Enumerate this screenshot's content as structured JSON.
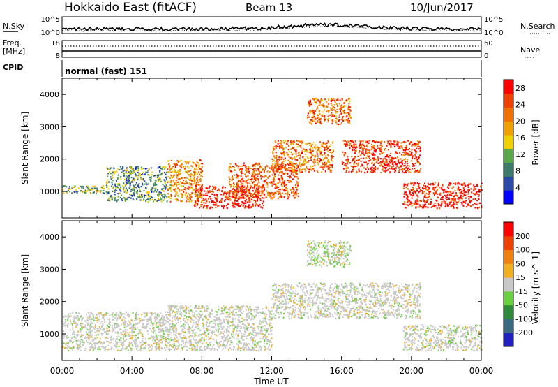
{
  "header": {
    "station": "Hokkaido East (fitACF)",
    "beam": "Beam 13",
    "date": "10/Jun/2017"
  },
  "top_panels": {
    "nsky_label": "N.Sky",
    "nsearch_label": "N.Search",
    "noise_ticks": [
      "10^5",
      "10^0"
    ],
    "freq_label": "Freq.",
    "freq_unit": "[MHz]",
    "freq_ticks": [
      "18",
      "8"
    ],
    "nave_label": "Nave",
    "nave_ticks": [
      "60",
      "0"
    ],
    "cpid_label": "CPID",
    "cpid_value": "normal (fast) 151"
  },
  "colors": {
    "power_scale": [
      "#0000ff",
      "#2a48a8",
      "#3e7a6a",
      "#5aa84a",
      "#f0d000",
      "#f0a000",
      "#f07000",
      "#f04000",
      "#ff0000"
    ],
    "velocity_scale": [
      "#2020c0",
      "#3a6a80",
      "#2e8a3a",
      "#6ad040",
      "#c8c8c8",
      "#f0b020",
      "#f08010",
      "#f04000",
      "#ff0000"
    ]
  },
  "chart_data": [
    {
      "type": "heatmap",
      "title": "",
      "xlabel": "Time UT",
      "ylabel": "Slant Range [km]",
      "quantity": "Power [dB]",
      "xlim": [
        0,
        24
      ],
      "ylim": [
        180,
        4500
      ],
      "x_ticks": [
        "00:00",
        "04:00",
        "08:00",
        "12:00",
        "16:00",
        "20:00",
        "00:00"
      ],
      "y_ticks": [
        1000,
        2000,
        3000,
        4000
      ],
      "colorbar": {
        "label": "Power [dB]",
        "ticks": [
          4,
          8,
          12,
          16,
          20,
          24,
          28
        ],
        "range": [
          0,
          30
        ]
      },
      "echo_regions": [
        {
          "t": [
            0.0,
            2.5
          ],
          "r": [
            950,
            1200
          ],
          "value": 12
        },
        {
          "t": [
            2.5,
            6.0
          ],
          "r": [
            700,
            1800
          ],
          "value": 10
        },
        {
          "t": [
            6.0,
            8.0
          ],
          "r": [
            700,
            2000
          ],
          "value": 20
        },
        {
          "t": [
            7.5,
            11.5
          ],
          "r": [
            500,
            1200
          ],
          "value": 28
        },
        {
          "t": [
            9.5,
            13.5
          ],
          "r": [
            800,
            1900
          ],
          "value": 24
        },
        {
          "t": [
            12.0,
            15.5
          ],
          "r": [
            1600,
            2600
          ],
          "value": 22
        },
        {
          "t": [
            14.0,
            16.5
          ],
          "r": [
            3100,
            3900
          ],
          "value": 22
        },
        {
          "t": [
            16.0,
            20.5
          ],
          "r": [
            1600,
            2600
          ],
          "value": 26
        },
        {
          "t": [
            19.5,
            24.0
          ],
          "r": [
            500,
            1300
          ],
          "value": 28
        }
      ]
    },
    {
      "type": "heatmap",
      "title": "",
      "xlabel": "Time UT",
      "ylabel": "Slant Range [km]",
      "quantity": "Velocity [m s^-1]",
      "xlim": [
        0,
        24
      ],
      "ylim": [
        180,
        4500
      ],
      "x_ticks": [
        "00:00",
        "04:00",
        "08:00",
        "12:00",
        "16:00",
        "20:00",
        "00:00"
      ],
      "y_ticks": [
        1000,
        2000,
        3000,
        4000
      ],
      "colorbar": {
        "label": "Velocity [m s^-1]",
        "ticks": [
          200,
          100,
          50,
          15,
          -15,
          -50,
          -100,
          -200
        ],
        "range": [
          -250,
          250
        ]
      },
      "echo_regions": [
        {
          "t": [
            0.0,
            6.0
          ],
          "r": [
            500,
            1700
          ],
          "value": 0
        },
        {
          "t": [
            6.0,
            12.0
          ],
          "r": [
            500,
            1900
          ],
          "value": 0
        },
        {
          "t": [
            12.0,
            20.5
          ],
          "r": [
            1500,
            2600
          ],
          "value": 0
        },
        {
          "t": [
            14.0,
            16.5
          ],
          "r": [
            3100,
            3900
          ],
          "value": -20
        },
        {
          "t": [
            19.5,
            24.0
          ],
          "r": [
            500,
            1300
          ],
          "value": 0
        }
      ]
    }
  ]
}
